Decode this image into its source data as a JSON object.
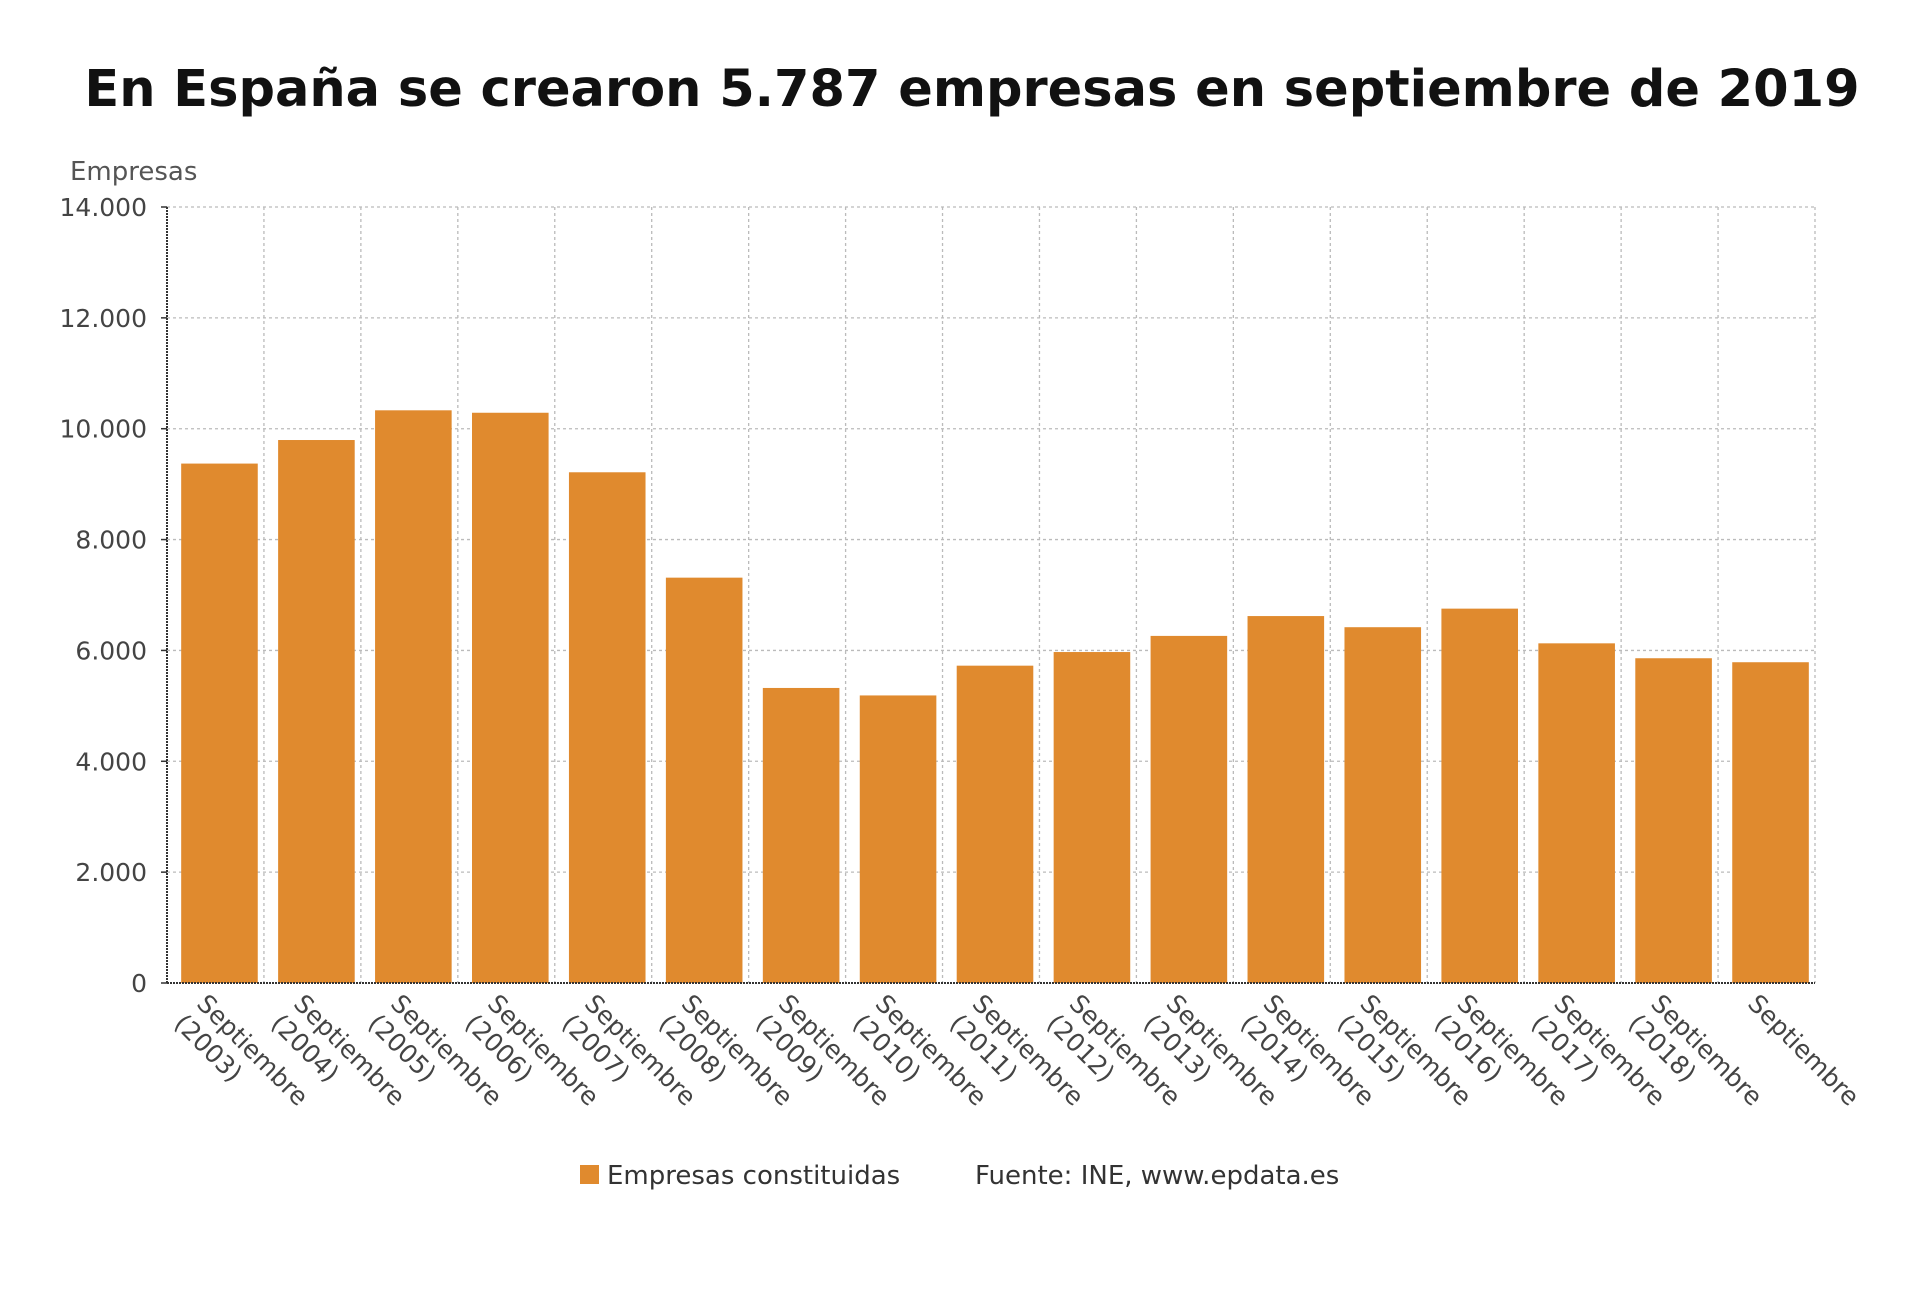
{
  "chart_data": {
    "type": "bar",
    "title": "En España se crearon 5.787 empresas en septiembre de 2019",
    "ylabel": "Empresas",
    "xlabel": "",
    "ylim": [
      0,
      14000
    ],
    "yticks": [
      "0",
      "2.000",
      "4.000",
      "6.000",
      "8.000",
      "10.000",
      "12.000",
      "14.000"
    ],
    "grid": true,
    "legend_position": "bottom",
    "categories": [
      [
        "Septiembre",
        "(2003)"
      ],
      [
        "Septiembre",
        "(2004)"
      ],
      [
        "Septiembre",
        "(2005)"
      ],
      [
        "Septiembre",
        "(2006)"
      ],
      [
        "Septiembre",
        "(2007)"
      ],
      [
        "Septiembre",
        "(2008)"
      ],
      [
        "Septiembre",
        "(2009)"
      ],
      [
        "Septiembre",
        "(2010)"
      ],
      [
        "Septiembre",
        "(2011)"
      ],
      [
        "Septiembre",
        "(2012)"
      ],
      [
        "Septiembre",
        "(2013)"
      ],
      [
        "Septiembre",
        "(2014)"
      ],
      [
        "Septiembre",
        "(2015)"
      ],
      [
        "Septiembre",
        "(2016)"
      ],
      [
        "Septiembre",
        "(2017)"
      ],
      [
        "Septiembre",
        "(2018)"
      ],
      [
        "Septiembre"
      ]
    ],
    "series": [
      {
        "name": "Empresas constituidas",
        "color": "#e08a2e",
        "values": [
          9371,
          9796,
          10332,
          10288,
          9214,
          7313,
          5323,
          5188,
          5725,
          5971,
          6262,
          6620,
          6419,
          6754,
          6128,
          5859,
          5787
        ]
      }
    ],
    "source": "Fuente: INE, www.epdata.es"
  }
}
